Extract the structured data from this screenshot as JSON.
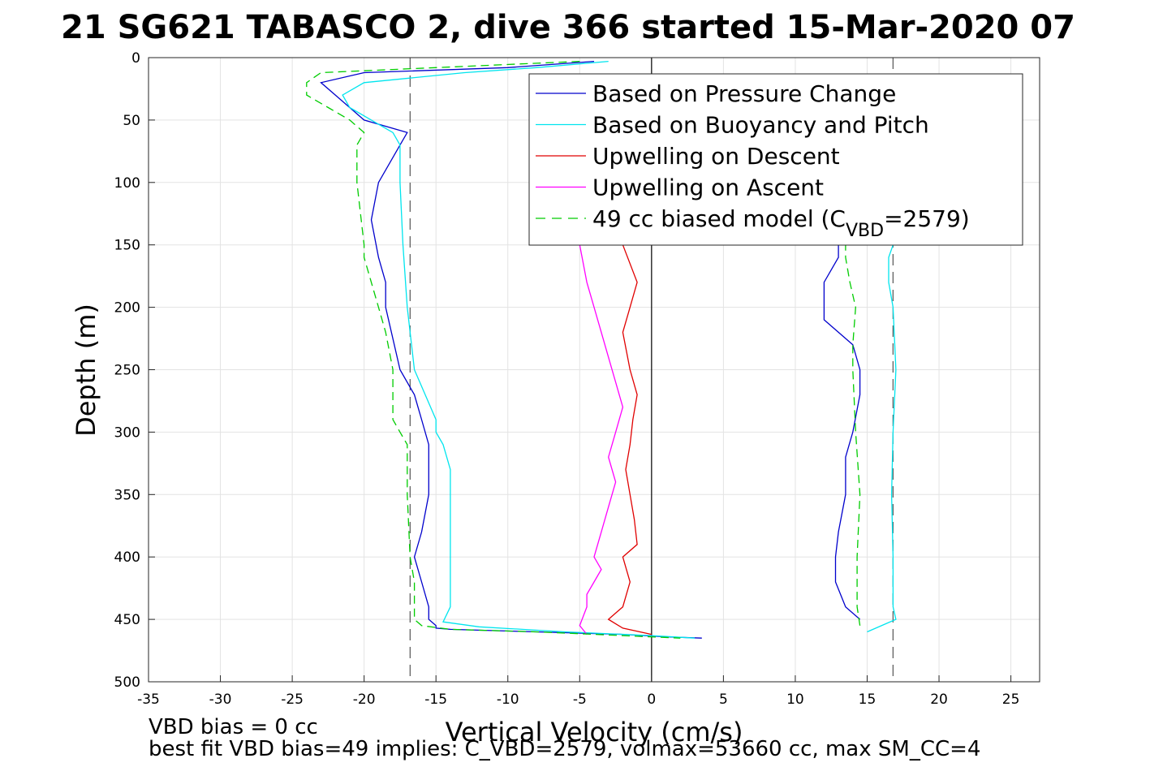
{
  "chart_data": {
    "type": "line",
    "title": "21 SG621 TABASCO 2, dive 366 started 15-Mar-2020 07",
    "xlabel": "Vertical Velocity (cm/s)",
    "ylabel": "Depth (m)",
    "xlim": [
      -35,
      27
    ],
    "ylim": [
      0,
      500
    ],
    "y_reversed": true,
    "grid": true,
    "xticks": [
      -35,
      -30,
      -25,
      -20,
      -15,
      -10,
      -5,
      0,
      5,
      10,
      15,
      20,
      25
    ],
    "yticks": [
      0,
      50,
      100,
      150,
      200,
      250,
      300,
      350,
      400,
      450,
      500
    ],
    "legend_position": "top-right",
    "vertical_lines": [
      {
        "x": -16.8,
        "style": "dashed",
        "color": "#555555"
      },
      {
        "x": 0,
        "style": "solid",
        "color": "#000000"
      },
      {
        "x": 16.8,
        "style": "dashed",
        "color": "#555555"
      }
    ],
    "series": [
      {
        "name": "Based on Pressure Change",
        "color": "#0000cc",
        "style": "solid",
        "descent": {
          "x": [
            -4,
            -10,
            -20,
            -23,
            -22,
            -21,
            -20,
            -17,
            -17.5,
            -19,
            -19.5,
            -19,
            -18.5,
            -18.5,
            -17.5,
            -16.5,
            -16,
            -15.5,
            -15.5,
            -16,
            -16.5,
            -16,
            -15.5,
            -15.5,
            -15,
            -15,
            -14,
            -8,
            -2,
            1,
            3.5
          ],
          "y": [
            3,
            8,
            12,
            20,
            30,
            40,
            50,
            60,
            70,
            100,
            130,
            160,
            180,
            200,
            250,
            270,
            290,
            310,
            350,
            380,
            400,
            420,
            440,
            450,
            455,
            457,
            458,
            460,
            462,
            464,
            465
          ]
        },
        "ascent": {
          "x": [
            14.5,
            13.5,
            12.8,
            12.8,
            13,
            13.5,
            13.5,
            14,
            14.5,
            14.5,
            14,
            12,
            12,
            13,
            13
          ],
          "y": [
            450,
            440,
            420,
            400,
            380,
            350,
            320,
            300,
            270,
            250,
            230,
            210,
            180,
            160,
            150
          ]
        }
      },
      {
        "name": "Based on Buoyancy and Pitch",
        "color": "#00e5ee",
        "style": "solid",
        "descent": {
          "x": [
            -3,
            -8,
            -13,
            -20,
            -21.5,
            -21,
            -19.5,
            -18,
            -17.5,
            -17.5,
            -17.3,
            -17,
            -16.5,
            -15,
            -15,
            -14.5,
            -14,
            -14,
            -14,
            -14,
            -14.5,
            -12,
            -6,
            0,
            3
          ],
          "y": [
            3,
            8,
            12,
            20,
            30,
            40,
            50,
            60,
            70,
            100,
            150,
            200,
            250,
            290,
            300,
            310,
            330,
            350,
            400,
            440,
            452,
            456,
            460,
            463,
            465
          ]
        },
        "ascent": {
          "x": [
            15,
            17,
            16.8,
            16.8,
            16.7,
            16.8,
            17,
            16.8,
            16.5,
            16.5,
            16.8,
            17
          ],
          "y": [
            460,
            450,
            440,
            400,
            350,
            300,
            250,
            200,
            180,
            160,
            150,
            140
          ]
        }
      },
      {
        "name": "Upwelling on Descent",
        "color": "#e00000",
        "style": "solid",
        "x": [
          -2,
          -1,
          -1.5,
          -2,
          -1.5,
          -1,
          -1.3,
          -1.5,
          -1.8,
          -1.5,
          -1.2,
          -1,
          -2,
          -1.5,
          -2,
          -3,
          -2,
          0
        ],
        "y": [
          150,
          180,
          200,
          220,
          250,
          270,
          290,
          310,
          330,
          350,
          370,
          390,
          400,
          420,
          440,
          450,
          457,
          462
        ]
      },
      {
        "name": "Upwelling on Ascent",
        "color": "#ff00ff",
        "style": "solid",
        "x": [
          -5,
          -4.5,
          -4,
          -3.5,
          -3,
          -2.5,
          -2,
          -2.5,
          -3,
          -2.5,
          -3,
          -3.5,
          -4,
          -3.5,
          -4,
          -4.5,
          -4.5,
          -5,
          -4.5
        ],
        "y": [
          150,
          180,
          200,
          220,
          240,
          260,
          280,
          300,
          320,
          340,
          360,
          380,
          400,
          410,
          420,
          430,
          440,
          455,
          462
        ]
      },
      {
        "name": "49 cc biased model (C",
        "name_sub": "VBD",
        "name_suffix": "=2579)",
        "color": "#00cc00",
        "style": "dashed",
        "descent": {
          "x": [
            -5,
            -15,
            -23,
            -24,
            -24,
            -22.5,
            -21,
            -20,
            -20.5,
            -20.5,
            -20,
            -20,
            -19,
            -18.5,
            -18,
            -18,
            -18,
            -17.5,
            -17,
            -17,
            -16.8,
            -16.5,
            -16.5,
            -16.5,
            -16,
            -14,
            -8,
            -2,
            2
          ],
          "y": [
            3,
            8,
            12,
            20,
            30,
            40,
            50,
            60,
            70,
            100,
            150,
            160,
            200,
            220,
            250,
            270,
            290,
            300,
            310,
            350,
            400,
            420,
            440,
            450,
            455,
            458,
            460,
            463,
            465
          ]
        },
        "ascent": {
          "x": [
            14.5,
            14.3,
            14.3,
            14.5,
            14.2,
            14,
            14,
            14.2,
            13.8,
            13.5,
            13.5,
            14
          ],
          "y": [
            455,
            440,
            400,
            350,
            300,
            250,
            230,
            200,
            180,
            160,
            150,
            140
          ]
        }
      }
    ],
    "footer": {
      "line1": "VBD bias = 0 cc",
      "line2": "best fit VBD bias=49 implies: C_VBD=2579, volmax=53660 cc, max SM_CC=4"
    }
  }
}
